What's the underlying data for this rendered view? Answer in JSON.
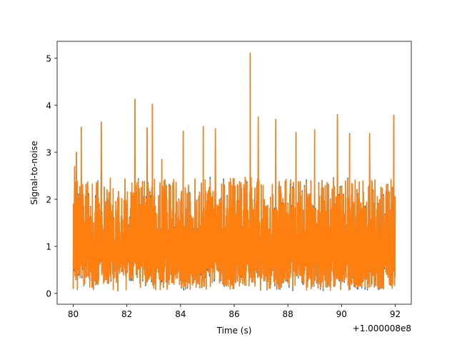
{
  "chart_data": {
    "type": "line",
    "title": "",
    "xlabel": "Time (s)",
    "ylabel": "Signal-to-noise",
    "x_offset_label": "+1.000008e8",
    "xlim": [
      79.4,
      92.6
    ],
    "ylim": [
      -0.23,
      5.36
    ],
    "x_ticks": [
      80,
      82,
      84,
      86,
      88,
      90,
      92
    ],
    "x_tick_labels": [
      "80",
      "82",
      "84",
      "86",
      "88",
      "90",
      "92"
    ],
    "y_ticks": [
      0,
      1,
      2,
      3,
      4,
      5
    ],
    "y_tick_labels": [
      "0",
      "1",
      "2",
      "3",
      "4",
      "5"
    ],
    "grid": false,
    "legend": "none",
    "x_range": [
      80.0,
      92.0
    ],
    "series": [
      {
        "color": "#1f77b4",
        "baseline": [
          0.08,
          2.45
        ],
        "peaks": [
          [
            80.05,
            2.7
          ],
          [
            80.3,
            3.53
          ],
          [
            80.12,
            3.0
          ],
          [
            81.05,
            3.64
          ],
          [
            82.3,
            4.13
          ],
          [
            82.95,
            4.02
          ],
          [
            82.75,
            3.52
          ],
          [
            83.3,
            2.85
          ],
          [
            84.1,
            3.45
          ],
          [
            84.85,
            3.55
          ],
          [
            85.3,
            3.5
          ],
          [
            86.6,
            5.1
          ],
          [
            86.9,
            3.75
          ],
          [
            87.55,
            3.7
          ],
          [
            88.3,
            3.42
          ],
          [
            89.0,
            3.48
          ],
          [
            89.85,
            3.8
          ],
          [
            90.3,
            3.4
          ],
          [
            91.05,
            3.4
          ],
          [
            91.95,
            3.79
          ]
        ],
        "points": 1400
      },
      {
        "color": "#ff7f0e",
        "baseline": [
          0.08,
          2.45
        ],
        "peaks": [
          [
            80.05,
            2.7
          ],
          [
            80.3,
            3.52
          ],
          [
            80.12,
            3.0
          ],
          [
            81.05,
            3.63
          ],
          [
            82.3,
            4.13
          ],
          [
            82.95,
            4.02
          ],
          [
            82.75,
            3.52
          ],
          [
            83.3,
            2.85
          ],
          [
            84.1,
            3.44
          ],
          [
            84.85,
            3.55
          ],
          [
            85.3,
            3.5
          ],
          [
            86.6,
            5.11
          ],
          [
            86.9,
            3.75
          ],
          [
            87.55,
            3.7
          ],
          [
            88.3,
            3.41
          ],
          [
            89.0,
            3.47
          ],
          [
            89.85,
            3.79
          ],
          [
            90.3,
            3.38
          ],
          [
            91.05,
            3.4
          ],
          [
            91.95,
            3.78
          ]
        ],
        "points": 1400
      }
    ]
  }
}
